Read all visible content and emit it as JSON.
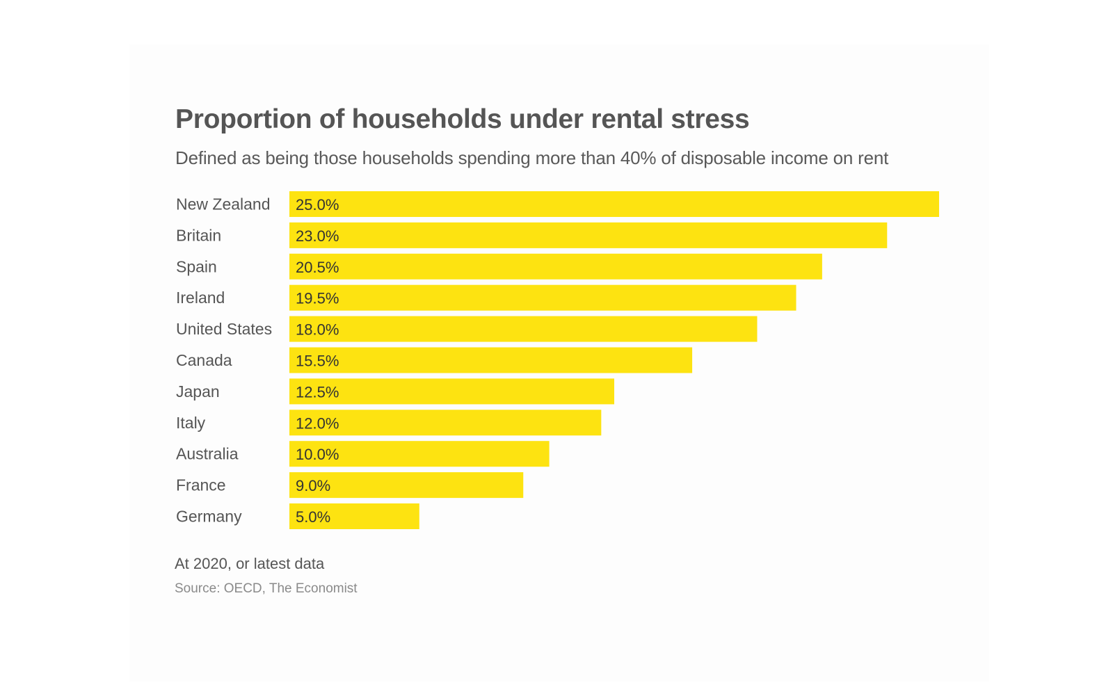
{
  "chart_data": {
    "type": "bar",
    "orientation": "horizontal",
    "title": "Proportion of households under rental stress",
    "subtitle": "Defined as being those households spending more than 40% of disposable income on rent",
    "categories": [
      "New Zealand",
      "Britain",
      "Spain",
      "Ireland",
      "United States",
      "Canada",
      "Japan",
      "Italy",
      "Australia",
      "France",
      "Germany"
    ],
    "values": [
      25.0,
      23.0,
      20.5,
      19.5,
      18.0,
      15.5,
      12.5,
      12.0,
      10.0,
      9.0,
      5.0
    ],
    "data_labels": [
      "25.0%",
      "23.0%",
      "20.5%",
      "19.5%",
      "18.0%",
      "15.5%",
      "12.5%",
      "12.0%",
      "10.0%",
      "9.0%",
      "5.0%"
    ],
    "xlim": [
      0,
      25
    ],
    "grid": false,
    "bar_color": "#fde311",
    "note": "At 2020, or latest data",
    "source": "Source: OECD, The Economist"
  }
}
